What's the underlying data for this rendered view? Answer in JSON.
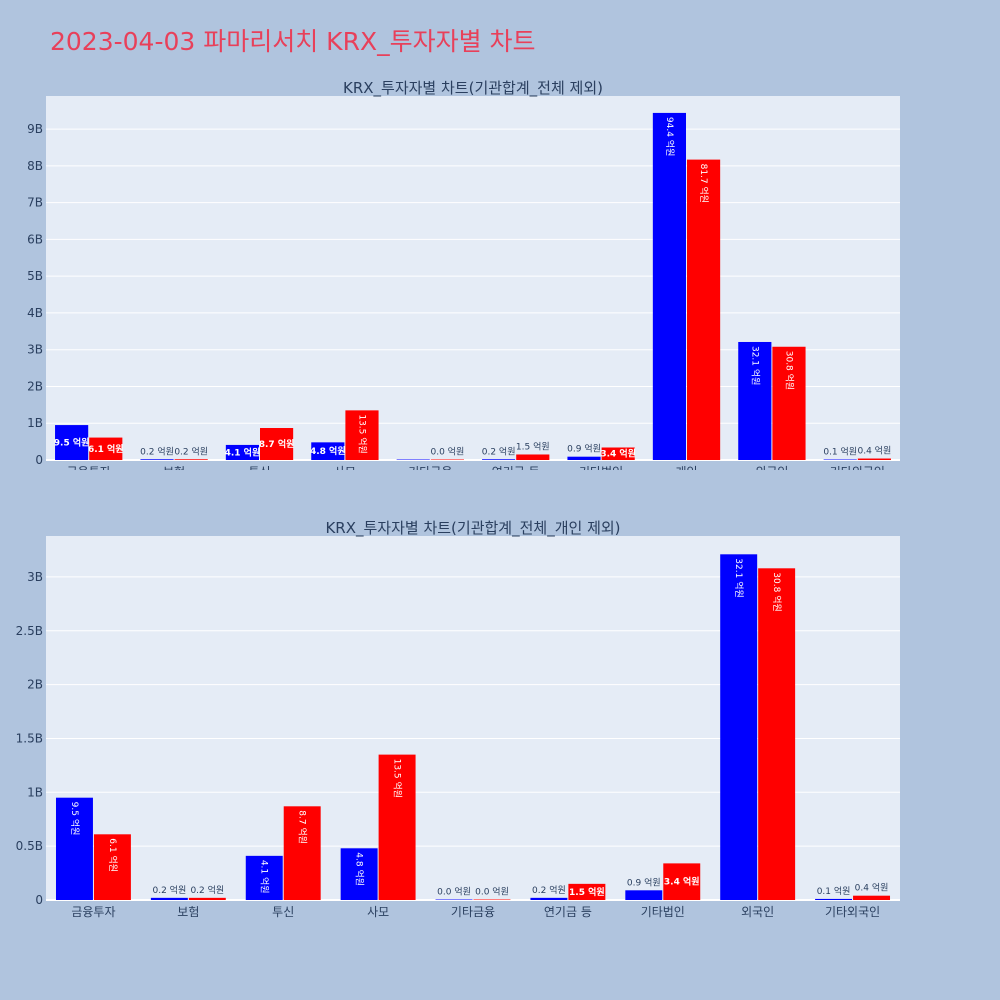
{
  "title": "2023-04-03 파마리서치 KRX_투자자별 차트",
  "colors": {
    "background": "#b0c4de",
    "plot_bg": "#e5ecf6",
    "buy": "#0000ff",
    "sell": "#ff0000",
    "title": "#e8405a"
  },
  "chart_data": [
    {
      "type": "bar",
      "title": "KRX_투자자별 차트(기관합계_전체 제외)",
      "categories": [
        "금융투자",
        "보험",
        "투신",
        "사모",
        "기타금융",
        "연기금 등",
        "기타법인",
        "개인",
        "외국인",
        "기타외국인"
      ],
      "series": [
        {
          "values": [
            950000000,
            20000000,
            410000000,
            480000000,
            0,
            20000000,
            90000000,
            9440000000,
            3210000000,
            10000000
          ],
          "labels": [
            "9.5 억원",
            "0.2 억원",
            "4.1 억원",
            "4.8 억원",
            "",
            "0.2 억원",
            "0.9 억원",
            "94.4 억원",
            "32.1 억원",
            "0.1 억원"
          ]
        },
        {
          "values": [
            610000000,
            20000000,
            870000000,
            1350000000,
            0,
            150000000,
            340000000,
            8170000000,
            3080000000,
            40000000
          ],
          "labels": [
            "6.1 억원",
            "0.2 억원",
            "8.7 억원",
            "13.5 억원",
            "0.0 억원",
            "1.5 억원",
            "3.4 억원",
            "81.7 억원",
            "30.8 억원",
            "0.4 억원"
          ]
        }
      ],
      "yticks": [
        "0",
        "1B",
        "2B",
        "3B",
        "4B",
        "5B",
        "6B",
        "7B",
        "8B",
        "9B"
      ],
      "ytick_values": [
        0,
        1000000000,
        2000000000,
        3000000000,
        4000000000,
        5000000000,
        6000000000,
        7000000000,
        8000000000,
        9000000000
      ],
      "ylim": [
        0,
        9900000000
      ]
    },
    {
      "type": "bar",
      "title": "KRX_투자자별 차트(기관합계_전체_개인 제외)",
      "categories": [
        "금융투자",
        "보험",
        "투신",
        "사모",
        "기타금융",
        "연기금 등",
        "기타법인",
        "외국인",
        "기타외국인"
      ],
      "series": [
        {
          "values": [
            950000000,
            20000000,
            410000000,
            480000000,
            0,
            20000000,
            90000000,
            3210000000,
            10000000
          ],
          "labels": [
            "9.5 억원",
            "0.2 억원",
            "4.1 억원",
            "4.8 억원",
            "0.0 억원",
            "0.2 억원",
            "0.9 억원",
            "32.1 억원",
            "0.1 억원"
          ]
        },
        {
          "values": [
            610000000,
            20000000,
            870000000,
            1350000000,
            0,
            150000000,
            340000000,
            3080000000,
            40000000
          ],
          "labels": [
            "6.1 억원",
            "0.2 억원",
            "8.7 억원",
            "13.5 억원",
            "0.0 억원",
            "1.5 억원",
            "3.4 억원",
            "30.8 억원",
            "0.4 억원"
          ]
        }
      ],
      "yticks": [
        "0",
        "0.5B",
        "1B",
        "1.5B",
        "2B",
        "2.5B",
        "3B"
      ],
      "ytick_values": [
        0,
        500000000,
        1000000000,
        1500000000,
        2000000000,
        2500000000,
        3000000000
      ],
      "ylim": [
        0,
        3380000000
      ]
    }
  ]
}
